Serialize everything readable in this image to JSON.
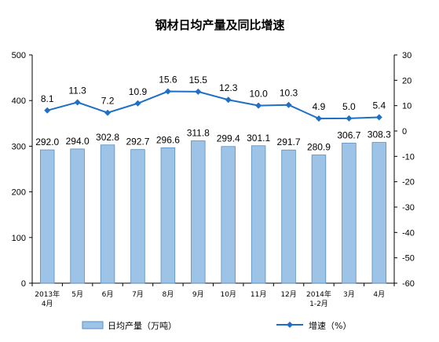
{
  "chart_data": {
    "type": "bar",
    "title": "钢材日均产量及同比增速",
    "categories": [
      [
        "2013年",
        "4月"
      ],
      [
        "5月"
      ],
      [
        "6月"
      ],
      [
        "7月"
      ],
      [
        "8月"
      ],
      [
        "9月"
      ],
      [
        "10月"
      ],
      [
        "11月"
      ],
      [
        "12月"
      ],
      [
        "2014年",
        "1-2月"
      ],
      [
        "3月"
      ],
      [
        "4月"
      ]
    ],
    "series": [
      {
        "name": "日均产量（万吨）",
        "type": "bar",
        "axis": "left",
        "color": "#9DC3E6",
        "values": [
          292.0,
          294.0,
          302.8,
          292.7,
          296.6,
          311.8,
          299.4,
          301.1,
          291.7,
          280.9,
          306.7,
          308.3
        ],
        "labels": [
          "292.0",
          "294.0",
          "302.8",
          "292.7",
          "296.6",
          "311.8",
          "299.4",
          "301.1",
          "291.7",
          "280.9",
          "306.7",
          "308.3"
        ]
      },
      {
        "name": "增速（%）",
        "type": "line",
        "axis": "right",
        "color": "#1F6FC5",
        "values": [
          8.1,
          11.3,
          7.2,
          10.9,
          15.6,
          15.5,
          12.3,
          10.0,
          10.3,
          4.9,
          5.0,
          5.4
        ],
        "labels": [
          "8.1",
          "11.3",
          "7.2",
          "10.9",
          "15.6",
          "15.5",
          "12.3",
          "10.0",
          "10.3",
          "4.9",
          "5.0",
          "5.4"
        ]
      }
    ],
    "y_left": {
      "lim": [
        0,
        500
      ],
      "ticks": [
        "0",
        "100",
        "200",
        "300",
        "400",
        "500"
      ]
    },
    "y_right": {
      "lim": [
        -60,
        30
      ],
      "ticks": [
        "30",
        "20",
        "10",
        "0",
        "-10",
        "-20",
        "-30",
        "-40",
        "-50",
        "-60"
      ]
    },
    "grid": false,
    "legend": "bottom"
  }
}
